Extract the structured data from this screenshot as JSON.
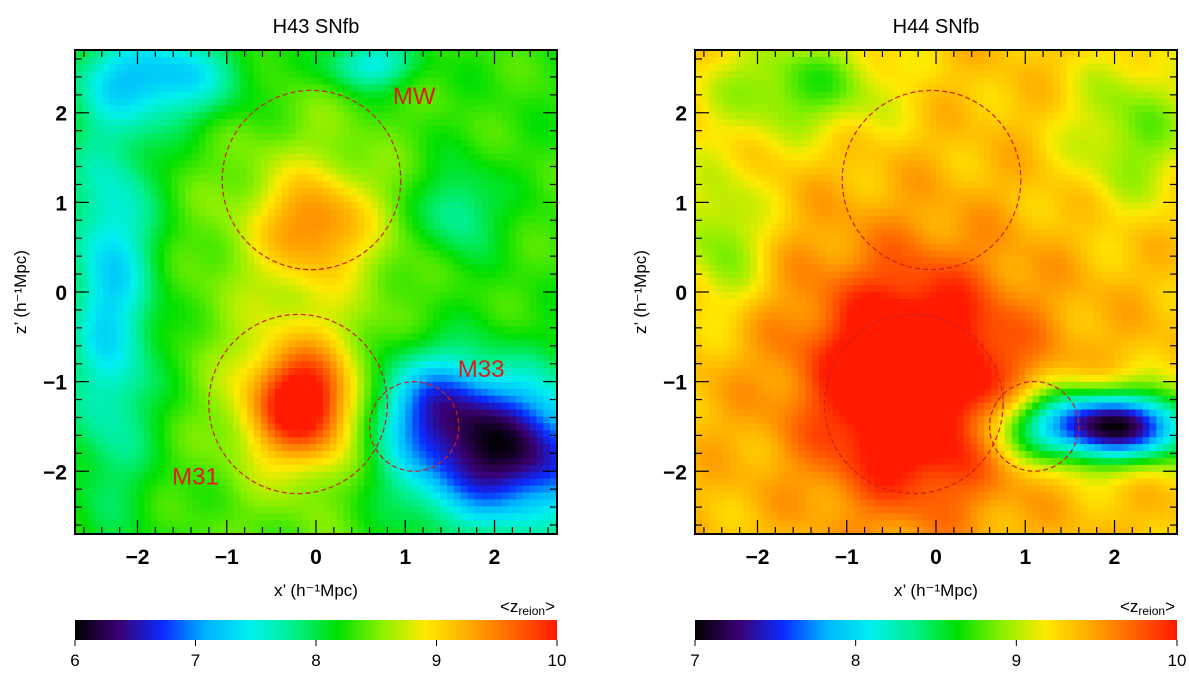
{
  "colors": {
    "circle": "#cc1f1f",
    "annotation": "#e01b1b",
    "colormap": [
      "#000000",
      "#3a0070",
      "#0a2bff",
      "#00b4ff",
      "#00f0f0",
      "#00ef8a",
      "#00e000",
      "#8af000",
      "#ffea00",
      "#ffaa00",
      "#ff6400",
      "#ff1a00"
    ]
  },
  "chart_data": [
    {
      "type": "heatmap",
      "title": "H43 SNfb",
      "xlabel": "x’ (h⁻¹Mpc)",
      "ylabel": "z’ (h⁻¹Mpc)",
      "xlim": [
        -2.7,
        2.7
      ],
      "ylim": [
        -2.7,
        2.7
      ],
      "xticks": [
        -2,
        -1,
        0,
        1,
        2
      ],
      "yticks": [
        -2,
        -1,
        0,
        1,
        2
      ],
      "grid": false,
      "colorbar": {
        "label": "<zreion>",
        "label_base": "<z",
        "label_sub": "reion",
        "label_end": ">",
        "range": [
          6,
          10
        ],
        "ticks": [
          6,
          7,
          8,
          9,
          10
        ]
      },
      "background_value": 8.3,
      "field": [
        {
          "x": 0.0,
          "y": 0.75,
          "sx": 0.45,
          "sy": 0.42,
          "amp": 0.9
        },
        {
          "x": -0.15,
          "y": -1.25,
          "sx": 0.42,
          "sy": 0.45,
          "amp": 1.8
        },
        {
          "x": -0.2,
          "y": -0.2,
          "sx": 0.8,
          "sy": 1.8,
          "amp": 0.35
        },
        {
          "x": 2.1,
          "y": -1.8,
          "sx": 0.8,
          "sy": 0.55,
          "amp": -2.1
        },
        {
          "x": 1.3,
          "y": -1.2,
          "sx": 0.5,
          "sy": 0.4,
          "amp": -1.0
        },
        {
          "x": -2.3,
          "y": 0.0,
          "sx": 0.35,
          "sy": 1.5,
          "amp": -1.0
        },
        {
          "x": -1.7,
          "y": 2.4,
          "sx": 0.6,
          "sy": 0.35,
          "amp": -1.1
        },
        {
          "x": 0.6,
          "y": 2.55,
          "sx": 0.35,
          "sy": 0.2,
          "amp": -0.9
        },
        {
          "x": 1.6,
          "y": 0.9,
          "sx": 0.3,
          "sy": 0.35,
          "amp": -0.6
        }
      ],
      "circles": [
        {
          "label": "MW",
          "x": -0.05,
          "y": 1.25,
          "r": 1.0,
          "label_x": 1.1,
          "label_y": 2.1
        },
        {
          "label": "M31",
          "x": -0.2,
          "y": -1.25,
          "r": 1.0,
          "label_x": -1.35,
          "label_y": -2.15
        },
        {
          "label": "M33",
          "x": 1.1,
          "y": -1.5,
          "r": 0.5,
          "label_x": 1.85,
          "label_y": -0.95
        }
      ]
    },
    {
      "type": "heatmap",
      "title": "H44 SNfb",
      "xlabel": "x’ (h⁻¹Mpc)",
      "ylabel": "z’ (h⁻¹Mpc)",
      "xlim": [
        -2.7,
        2.7
      ],
      "ylim": [
        -2.7,
        2.7
      ],
      "xticks": [
        -2,
        -1,
        0,
        1,
        2
      ],
      "yticks": [
        -2,
        -1,
        0,
        1,
        2
      ],
      "grid": false,
      "colorbar": {
        "label": "<zreion>",
        "label_base": "<z",
        "label_sub": "reion",
        "label_end": ">",
        "range": [
          7,
          10
        ],
        "ticks": [
          7,
          8,
          9,
          10
        ]
      },
      "background_value": 9.35,
      "field": [
        {
          "x": -0.25,
          "y": -1.1,
          "sx": 0.7,
          "sy": 0.85,
          "amp": 0.9
        },
        {
          "x": -0.3,
          "y": -0.8,
          "sx": 1.15,
          "sy": 1.0,
          "amp": 0.35
        },
        {
          "x": 1.9,
          "y": -1.5,
          "sx": 0.75,
          "sy": 0.28,
          "amp": -2.3
        },
        {
          "x": -1.5,
          "y": 2.3,
          "sx": 0.7,
          "sy": 0.4,
          "amp": -0.6
        },
        {
          "x": 2.2,
          "y": 1.8,
          "sx": 0.5,
          "sy": 0.6,
          "amp": -0.5
        },
        {
          "x": -2.4,
          "y": 0.6,
          "sx": 0.35,
          "sy": 0.6,
          "amp": -0.5
        }
      ],
      "circles": [
        {
          "label": "",
          "x": -0.05,
          "y": 1.25,
          "r": 1.0
        },
        {
          "label": "",
          "x": -0.25,
          "y": -1.25,
          "r": 1.0
        },
        {
          "label": "",
          "x": 1.1,
          "y": -1.5,
          "r": 0.5
        }
      ]
    }
  ]
}
